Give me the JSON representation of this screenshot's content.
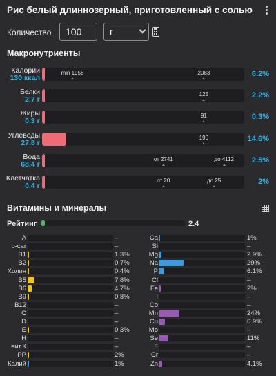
{
  "header": {
    "title": "Рис белый длиннозерный, приготовленный с солью",
    "menu_icon": "kebab-icon"
  },
  "quantity": {
    "label": "Количество",
    "value": "100",
    "unit": "г",
    "calc_icon": "calculator-icon"
  },
  "macros": {
    "title": "Макронутриенты",
    "fill_color": "#ef6b76",
    "accent_color": "#2ab7ec",
    "rows": [
      {
        "name": "Калории",
        "value": "130 ккал",
        "fill": 0.015,
        "marks": [
          {
            "label": "min 1958",
            "pos": 0.15
          },
          {
            "label": "2083",
            "pos": 0.8
          }
        ],
        "pct": "6.2%"
      },
      {
        "name": "Белки",
        "value": "2.7 г",
        "fill": 0.015,
        "marks": [
          {
            "label": "125",
            "pos": 0.8
          }
        ],
        "pct": "2.2%"
      },
      {
        "name": "Жиры",
        "value": "0.3 г",
        "fill": 0.015,
        "marks": [
          {
            "label": "91",
            "pos": 0.8
          }
        ],
        "pct": "0.3%"
      },
      {
        "name": "Углеводы",
        "value": "27.8 г",
        "fill": 0.12,
        "marks": [
          {
            "label": "190",
            "pos": 0.8
          }
        ],
        "pct": "14.6%"
      },
      {
        "name": "Вода",
        "value": "68.4 г",
        "fill": 0.015,
        "marks": [
          {
            "label": "от 2741",
            "pos": 0.6
          },
          {
            "label": "до 4112",
            "pos": 0.9
          }
        ],
        "pct": "2.5%"
      },
      {
        "name": "Клетчатка",
        "value": "0.4 г",
        "fill": 0.015,
        "marks": [
          {
            "label": "от 20",
            "pos": 0.6
          },
          {
            "label": "до 25",
            "pos": 0.85
          }
        ],
        "pct": "2%"
      }
    ]
  },
  "micros": {
    "title": "Витамины и минералы",
    "table_icon": "table-icon",
    "rating": {
      "label": "Рейтинг",
      "value": "2.4",
      "fill": 0.024,
      "color": "#3fbf64"
    },
    "vitamins": [
      {
        "name": "A",
        "value": "–",
        "fill": 0,
        "color": "#f1c40f"
      },
      {
        "name": "b-car",
        "value": "–",
        "fill": 0,
        "color": "#f1c40f"
      },
      {
        "name": "B1",
        "value": "1.3%",
        "fill": 0.013,
        "color": "#f1c40f"
      },
      {
        "name": "B2",
        "value": "0.7%",
        "fill": 0.007,
        "color": "#f1c40f"
      },
      {
        "name": "Холин",
        "value": "0.4%",
        "fill": 0.004,
        "color": "#f1c40f"
      },
      {
        "name": "B5",
        "value": "7.8%",
        "fill": 0.078,
        "color": "#f1c40f"
      },
      {
        "name": "B6",
        "value": "4.7%",
        "fill": 0.047,
        "color": "#f1c40f"
      },
      {
        "name": "B9",
        "value": "0.8%",
        "fill": 0.008,
        "color": "#f1c40f"
      },
      {
        "name": "B12",
        "value": "–",
        "fill": 0,
        "color": "#f1c40f"
      },
      {
        "name": "C",
        "value": "–",
        "fill": 0,
        "color": "#f1c40f"
      },
      {
        "name": "D",
        "value": "–",
        "fill": 0,
        "color": "#f1c40f"
      },
      {
        "name": "E",
        "value": "0.3%",
        "fill": 0.003,
        "color": "#f1c40f"
      },
      {
        "name": "H",
        "value": "–",
        "fill": 0,
        "color": "#f1c40f"
      },
      {
        "name": "вит.К",
        "value": "–",
        "fill": 0,
        "color": "#f1c40f"
      },
      {
        "name": "PP",
        "value": "2%",
        "fill": 0.02,
        "color": "#f1c40f"
      },
      {
        "name": "Калий",
        "value": "1%",
        "fill": 0.01,
        "color": "#3a9be0"
      }
    ],
    "minerals": [
      {
        "name": "Ca",
        "value": "1%",
        "fill": 0.01,
        "color": "#3a9be0"
      },
      {
        "name": "Si",
        "value": "–",
        "fill": 0,
        "color": "#3a9be0"
      },
      {
        "name": "Mg",
        "value": "2.9%",
        "fill": 0.029,
        "color": "#3a9be0"
      },
      {
        "name": "Na",
        "value": "29%",
        "fill": 0.29,
        "color": "#3a9be0"
      },
      {
        "name": "P",
        "value": "6.1%",
        "fill": 0.061,
        "color": "#3a9be0"
      },
      {
        "name": "Cl",
        "value": "–",
        "fill": 0,
        "color": "#3a9be0"
      },
      {
        "name": "Fe",
        "value": "2%",
        "fill": 0.02,
        "color": "#9b59b6"
      },
      {
        "name": "I",
        "value": "–",
        "fill": 0,
        "color": "#9b59b6"
      },
      {
        "name": "Co",
        "value": "–",
        "fill": 0,
        "color": "#9b59b6"
      },
      {
        "name": "Mn",
        "value": "24%",
        "fill": 0.24,
        "color": "#9b59b6"
      },
      {
        "name": "Cu",
        "value": "6.9%",
        "fill": 0.069,
        "color": "#9b59b6"
      },
      {
        "name": "Mo",
        "value": "–",
        "fill": 0,
        "color": "#9b59b6"
      },
      {
        "name": "Se",
        "value": "11%",
        "fill": 0.11,
        "color": "#9b59b6"
      },
      {
        "name": "F",
        "value": "–",
        "fill": 0,
        "color": "#9b59b6"
      },
      {
        "name": "Cr",
        "value": "–",
        "fill": 0,
        "color": "#9b59b6"
      },
      {
        "name": "Zn",
        "value": "4.1%",
        "fill": 0.041,
        "color": "#9b59b6"
      }
    ]
  }
}
